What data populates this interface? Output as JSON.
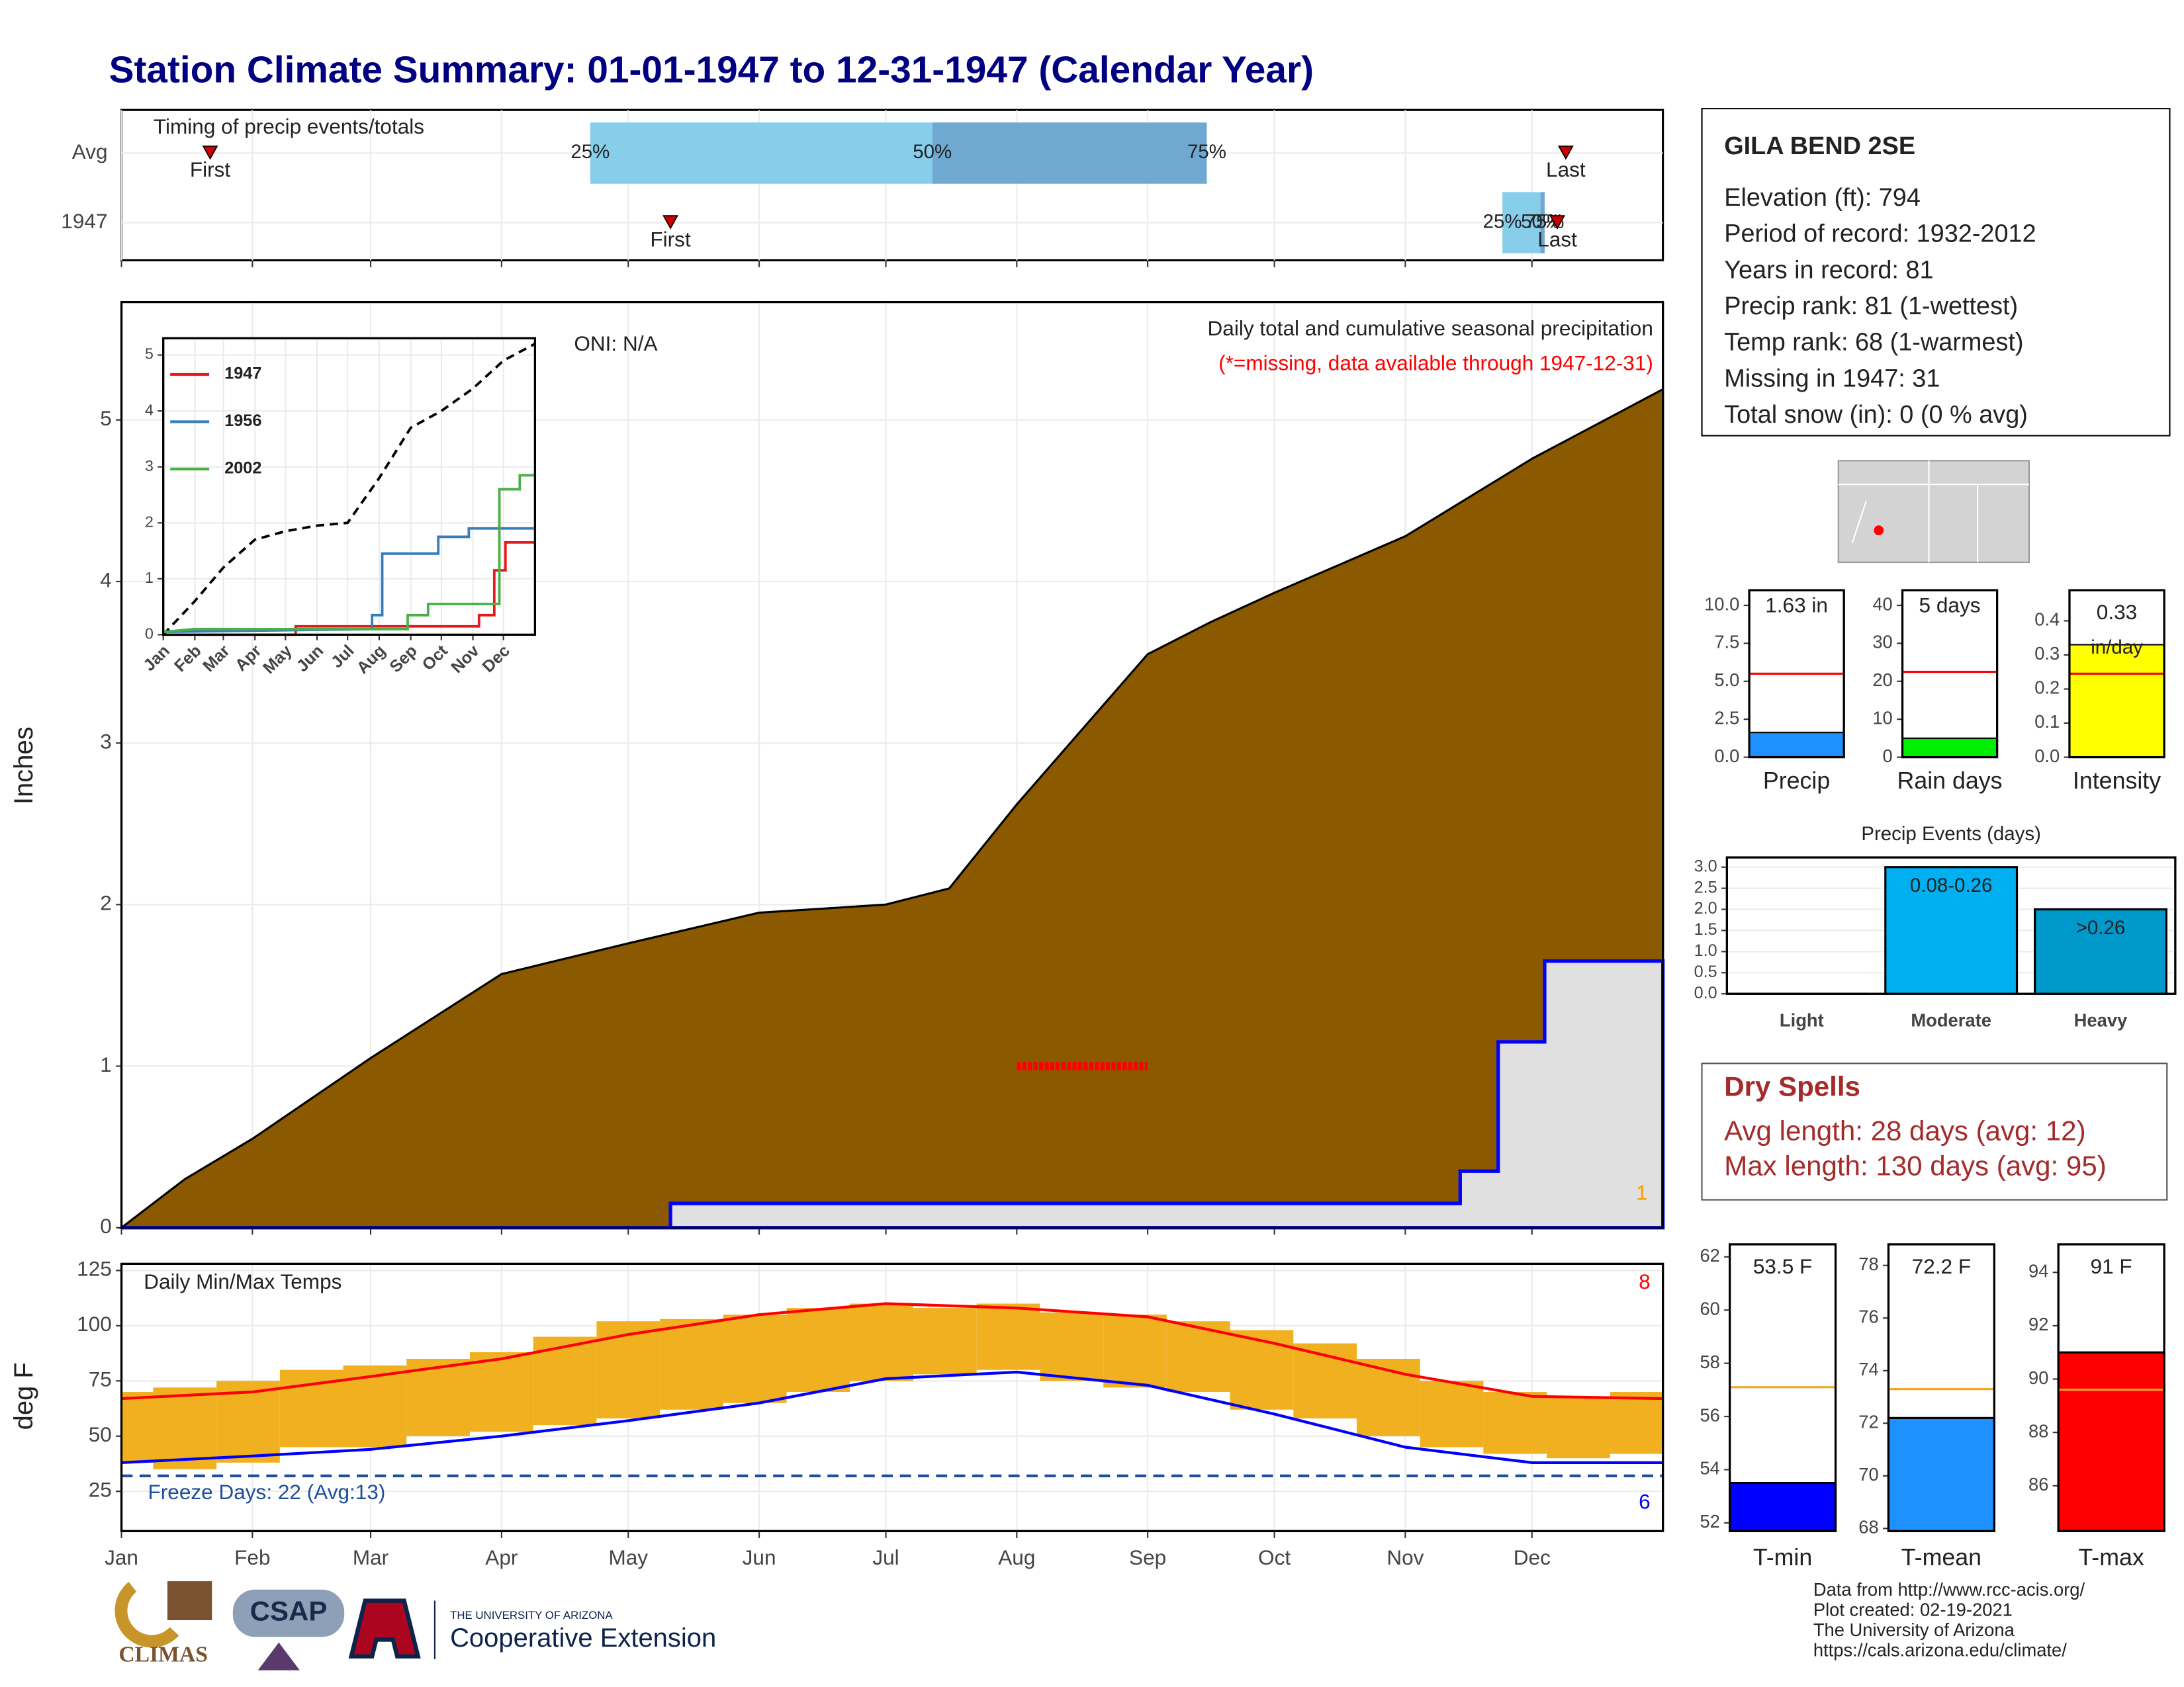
{
  "title": "Station Climate Summary: 01-01-1947 to 12-31-1947 (Calendar Year)",
  "chart_data": [
    {
      "type": "timing",
      "title": "Timing of precip events/totals",
      "xlim": [
        0,
        365
      ],
      "xticks": [
        0,
        31,
        59,
        90,
        120,
        151,
        181,
        212,
        243,
        273,
        304,
        334
      ],
      "q_labels": [
        "25%",
        "50%",
        "75%"
      ],
      "first_label": "First",
      "last_label": "Last",
      "rows": [
        {
          "name": "Avg",
          "first": 21,
          "q25": 111,
          "q50": 192,
          "q75": 257,
          "last": 342
        },
        {
          "name": "1947",
          "first": 130,
          "q25": 327,
          "q50": 336,
          "q75": 337,
          "last": 340
        }
      ]
    },
    {
      "type": "area",
      "ylabel": "Inches",
      "subtitle": "Daily total and cumulative seasonal precipitation",
      "note": "(*=missing, data available through 1947-12-31)",
      "oni": "ONI: N/A",
      "corner_count": "1",
      "xlim": [
        0,
        365
      ],
      "xticks": [
        0,
        31,
        59,
        90,
        120,
        151,
        181,
        212,
        243,
        273,
        304,
        334
      ],
      "ylim": [
        0,
        5.73
      ],
      "yticks": [
        0,
        1,
        2,
        3,
        4,
        5
      ],
      "grid": true,
      "missing_marker": {
        "x": [
          212,
          243
        ],
        "value": 1
      },
      "series": [
        {
          "color": "#8b5a00",
          "x": [
            0,
            15,
            31,
            59,
            90,
            120,
            151,
            181,
            196,
            212,
            243,
            258,
            273,
            304,
            334,
            365
          ],
          "values": [
            0,
            0.3,
            0.55,
            1.05,
            1.57,
            1.76,
            1.95,
            2.0,
            2.1,
            2.62,
            3.55,
            3.75,
            3.93,
            4.28,
            4.76,
            5.19
          ]
        },
        {
          "color": "#0000ff",
          "x": [
            0,
            130,
            130,
            317,
            317,
            326,
            326,
            337,
            337,
            365
          ],
          "values": [
            0,
            0,
            0.15,
            0.15,
            0.35,
            0.35,
            1.15,
            1.15,
            1.65,
            1.65
          ]
        }
      ]
    },
    {
      "type": "line",
      "xlim": [
        0,
        365
      ],
      "ylim": [
        0,
        5.3
      ],
      "yticks": [
        0,
        1,
        2,
        3,
        4,
        5
      ],
      "xticks": [
        {
          "value": 0,
          "label": "Jan"
        },
        {
          "value": 31,
          "label": "Feb"
        },
        {
          "value": 59,
          "label": "Mar"
        },
        {
          "value": 90,
          "label": "Apr"
        },
        {
          "value": 120,
          "label": "May"
        },
        {
          "value": 151,
          "label": "Jun"
        },
        {
          "value": 181,
          "label": "Jul"
        },
        {
          "value": 212,
          "label": "Aug"
        },
        {
          "value": 243,
          "label": "Sep"
        },
        {
          "value": 273,
          "label": "Oct"
        },
        {
          "value": 304,
          "label": "Nov"
        },
        {
          "value": 334,
          "label": "Dec"
        }
      ],
      "series": [
        {
          "color": "#000000",
          "x": [
            0,
            31,
            59,
            90,
            120,
            151,
            181,
            212,
            243,
            273,
            304,
            334,
            365
          ],
          "values": [
            0,
            0.6,
            1.2,
            1.7,
            1.85,
            1.95,
            2.0,
            2.8,
            3.7,
            4.0,
            4.4,
            4.9,
            5.2
          ]
        },
        {
          "name": "1947",
          "color": "#e41a1c",
          "x": [
            0,
            130,
            130,
            310,
            310,
            325,
            325,
            336,
            336,
            365
          ],
          "values": [
            0,
            0,
            0.15,
            0.15,
            0.35,
            0.35,
            1.15,
            1.15,
            1.65,
            1.65
          ]
        },
        {
          "name": "1956",
          "color": "#377eb8",
          "x": [
            0,
            205,
            205,
            215,
            215,
            270,
            270,
            300,
            300,
            365
          ],
          "values": [
            0.05,
            0.1,
            0.35,
            0.35,
            1.45,
            1.45,
            1.75,
            1.75,
            1.9,
            1.9
          ]
        },
        {
          "name": "2002",
          "color": "#4daf4a",
          "x": [
            0,
            30,
            240,
            240,
            260,
            260,
            330,
            330,
            350,
            350,
            365
          ],
          "values": [
            0.05,
            0.1,
            0.1,
            0.35,
            0.35,
            0.55,
            0.55,
            2.6,
            2.6,
            2.85,
            2.85
          ]
        }
      ]
    },
    {
      "type": "bar",
      "label": "Precip",
      "value": 1.63,
      "value_label": "1.63 in",
      "avg": 5.5,
      "color": "#1e90ff",
      "ylim": [
        0,
        11
      ],
      "yticks": [
        {
          "value": 0,
          "label": "0.0"
        },
        {
          "value": 2.5,
          "label": "2.5"
        },
        {
          "value": 5,
          "label": "5.0"
        },
        {
          "value": 7.5,
          "label": "7.5"
        },
        {
          "value": 10,
          "label": "10.0"
        }
      ]
    },
    {
      "type": "bar",
      "label": "Rain days",
      "value": 5,
      "value_label": "5 days",
      "avg": 22.5,
      "color": "#00ee00",
      "ylim": [
        0,
        44
      ],
      "yticks": [
        0,
        10,
        20,
        30,
        40
      ]
    },
    {
      "type": "bar",
      "label": "Intensity",
      "value": 0.33,
      "value_label": "0.33",
      "unit_label": "in/day",
      "avg": 0.245,
      "color": "#ffff00",
      "ylim": [
        0,
        0.49
      ],
      "yticks": [
        {
          "value": 0,
          "label": "0.0"
        },
        0.1,
        0.2,
        0.3,
        0.4
      ]
    },
    {
      "type": "events",
      "title": "Precip Events (days)",
      "categories": [
        "Light",
        "Moderate",
        "Heavy"
      ],
      "values": [
        0,
        3,
        2
      ],
      "bar_labels": [
        null,
        "0.08-0.26",
        ">0.26"
      ],
      "colors": [
        "#00b0f0",
        "#00b0f0",
        "#0099cc"
      ],
      "ylim": [
        0,
        3.23
      ],
      "yticks": [
        {
          "value": 0,
          "label": "0.0"
        },
        0.5,
        {
          "value": 1,
          "label": "1.0"
        },
        1.5,
        {
          "value": 2,
          "label": "2.0"
        },
        2.5,
        {
          "value": 3,
          "label": "3.0"
        }
      ]
    },
    {
      "type": "temps",
      "title": "Daily Min/Max Temps",
      "ylabel": "deg F",
      "freeze": 32,
      "freeze_label": "Freeze Days: 22 (Avg:13)",
      "hot_count": "8",
      "cold_count": "6",
      "xlim": [
        0,
        365
      ],
      "ylim": [
        7,
        128
      ],
      "yticks": [
        25,
        50,
        75,
        100,
        125
      ],
      "xticks": [
        {
          "value": 0,
          "label": "Jan"
        },
        {
          "value": 31,
          "label": "Feb"
        },
        {
          "value": 59,
          "label": "Mar"
        },
        {
          "value": 90,
          "label": "Apr"
        },
        {
          "value": 120,
          "label": "May"
        },
        {
          "value": 151,
          "label": "Jun"
        },
        {
          "value": 181,
          "label": "Jul"
        },
        {
          "value": 212,
          "label": "Aug"
        },
        {
          "value": 243,
          "label": "Sep"
        },
        {
          "value": 273,
          "label": "Oct"
        },
        {
          "value": 304,
          "label": "Nov"
        },
        {
          "value": 334,
          "label": "Dec"
        }
      ],
      "bars": {
        "color": "#f0b020",
        "width": 15,
        "x": [
          0,
          15,
          30,
          45,
          60,
          75,
          90,
          105,
          120,
          135,
          150,
          165,
          180,
          195,
          210,
          225,
          240,
          255,
          270,
          285,
          300,
          315,
          330,
          345,
          360
        ],
        "high": [
          70,
          72,
          75,
          80,
          82,
          85,
          88,
          95,
          102,
          103,
          105,
          108,
          110,
          108,
          110,
          106,
          105,
          102,
          98,
          92,
          85,
          75,
          70,
          68,
          70
        ],
        "low": [
          38,
          35,
          38,
          45,
          45,
          50,
          52,
          55,
          58,
          62,
          65,
          70,
          75,
          78,
          80,
          75,
          72,
          70,
          62,
          58,
          50,
          45,
          42,
          40,
          42
        ]
      },
      "series": [
        {
          "color": "#ff0000",
          "x": [
            0,
            31,
            59,
            90,
            120,
            151,
            181,
            212,
            243,
            273,
            304,
            334,
            365
          ],
          "values": [
            67,
            70,
            77,
            85,
            96,
            105,
            110,
            108,
            104,
            92,
            78,
            68,
            67
          ]
        },
        {
          "color": "#0000ff",
          "x": [
            0,
            31,
            59,
            90,
            120,
            151,
            181,
            212,
            243,
            273,
            304,
            334,
            365
          ],
          "values": [
            38,
            41,
            44,
            50,
            57,
            65,
            76,
            79,
            73,
            60,
            45,
            38,
            38
          ]
        }
      ]
    },
    {
      "type": "tbar",
      "label": "T-min",
      "value": 53.5,
      "value_label": "53.5 F",
      "avg": 57.1,
      "color": "#0000ff",
      "ylim": [
        51.69,
        62.47
      ],
      "yticks": [
        52,
        54,
        56,
        58,
        60,
        62
      ]
    },
    {
      "type": "tbar",
      "label": "T-mean",
      "value": 72.2,
      "value_label": "72.2 F",
      "avg": 73.3,
      "color": "#1e90ff",
      "ylim": [
        67.9,
        78.8
      ],
      "yticks": [
        68,
        70,
        72,
        74,
        76,
        78
      ]
    },
    {
      "type": "tbar",
      "label": "T-max",
      "value": 91,
      "value_label": "91 F",
      "avg": 89.6,
      "color": "#ff0000",
      "ylim": [
        84.3,
        95.05
      ],
      "yticks": [
        86,
        88,
        90,
        92,
        94
      ]
    }
  ],
  "station": {
    "name": "GILA BEND 2SE",
    "lines": [
      "Elevation (ft): 794",
      "Period of record: 1932-2012",
      "Years in record: 81",
      "Precip rank: 81 (1-wettest)",
      "Temp rank: 68 (1-warmest)",
      "Missing in 1947: 31",
      "Total snow (in): 0 (0 % avg)"
    ]
  },
  "dry_spells": {
    "title": "Dry Spells",
    "lines": [
      "Avg length: 28 days (avg: 12)",
      "Max length: 130 days (avg: 95)"
    ]
  },
  "credits": [
    "Data from http://www.rcc-acis.org/",
    "Plot created: 02-19-2021",
    "The University of Arizona",
    "https://cals.arizona.edu/climate/"
  ],
  "logos": [
    "CLIMAS",
    "CSAP",
    "THE UNIVERSITY OF ARIZONA",
    "Cooperative Extension"
  ]
}
